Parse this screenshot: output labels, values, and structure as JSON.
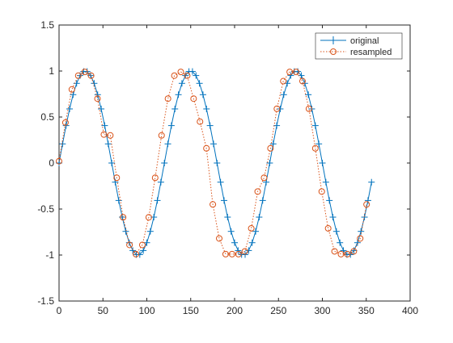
{
  "chart_data": {
    "type": "line",
    "title": "",
    "xlabel": "",
    "ylabel": "",
    "xlim": [
      0,
      400
    ],
    "ylim": [
      -1.5,
      1.5
    ],
    "xticks": [
      0,
      50,
      100,
      150,
      200,
      250,
      300,
      350,
      400
    ],
    "yticks": [
      -1.5,
      -1,
      -0.5,
      0,
      0.5,
      1,
      1.5
    ],
    "grid": false,
    "legend_position": "top-right",
    "series": [
      {
        "name": "original",
        "color": "#0072BD",
        "line_style": "solid",
        "marker": "plus",
        "x": [
          0,
          4,
          8,
          12,
          16,
          20,
          24,
          28,
          32,
          36,
          40,
          44,
          48,
          52,
          56,
          60,
          64,
          68,
          72,
          76,
          80,
          84,
          88,
          92,
          96,
          100,
          104,
          108,
          112,
          116,
          120,
          124,
          128,
          132,
          136,
          140,
          144,
          148,
          152,
          156,
          160,
          164,
          168,
          172,
          176,
          180,
          184,
          188,
          192,
          196,
          200,
          204,
          208,
          212,
          216,
          220,
          224,
          228,
          232,
          236,
          240,
          244,
          248,
          252,
          256,
          260,
          264,
          268,
          272,
          276,
          280,
          284,
          288,
          292,
          296,
          300,
          304,
          308,
          312,
          316,
          320,
          324,
          328,
          332,
          336,
          340,
          344,
          348,
          352,
          356
        ],
        "y": [
          0,
          0.208,
          0.407,
          0.588,
          0.743,
          0.866,
          0.951,
          0.995,
          0.995,
          0.951,
          0.866,
          0.743,
          0.588,
          0.407,
          0.208,
          0,
          -0.208,
          -0.407,
          -0.588,
          -0.743,
          -0.866,
          -0.951,
          -0.995,
          -0.995,
          -0.951,
          -0.866,
          -0.743,
          -0.588,
          -0.407,
          -0.208,
          0,
          0.208,
          0.407,
          0.588,
          0.743,
          0.866,
          0.951,
          0.995,
          0.995,
          0.951,
          0.866,
          0.743,
          0.588,
          0.407,
          0.208,
          0,
          -0.208,
          -0.407,
          -0.588,
          -0.743,
          -0.866,
          -0.951,
          -0.995,
          -0.995,
          -0.951,
          -0.866,
          -0.743,
          -0.588,
          -0.407,
          -0.208,
          0,
          0.208,
          0.407,
          0.588,
          0.743,
          0.866,
          0.951,
          0.995,
          0.995,
          0.951,
          0.866,
          0.743,
          0.588,
          0.407,
          0.208,
          0,
          -0.208,
          -0.407,
          -0.588,
          -0.743,
          -0.866,
          -0.951,
          -0.995,
          -0.995,
          -0.951,
          -0.866,
          -0.743,
          -0.588,
          -0.407,
          -0.208
        ]
      },
      {
        "name": "resampled",
        "color": "#D95319",
        "line_style": "dotted",
        "marker": "circle",
        "x": [
          0,
          7.3,
          14.6,
          21.9,
          29.2,
          36.5,
          43.8,
          51.1,
          58.4,
          65.7,
          73,
          80.3,
          87.6,
          94.9,
          102.2,
          109.5,
          116.8,
          124.1,
          131.4,
          138.7,
          146,
          153.3,
          160.6,
          167.9,
          175.2,
          182.5,
          189.8,
          197.1,
          204.4,
          211.7,
          219,
          226.3,
          233.6,
          240.9,
          248.2,
          255.5,
          262.8,
          270.1,
          277.4,
          284.7,
          292,
          299.3,
          306.6,
          313.9,
          321.2,
          328.5,
          335.8,
          343.1,
          350.4
        ],
        "y": [
          0.02,
          0.44,
          0.8,
          0.95,
          0.99,
          0.95,
          0.7,
          0.31,
          0.3,
          -0.16,
          -0.59,
          -0.89,
          -0.99,
          -0.89,
          -0.59,
          -0.16,
          0.3,
          0.7,
          0.95,
          0.99,
          0.95,
          0.7,
          0.45,
          0.16,
          -0.45,
          -0.82,
          -0.99,
          -0.99,
          -0.99,
          -0.96,
          -0.71,
          -0.31,
          -0.16,
          0.16,
          0.59,
          0.89,
          0.99,
          0.99,
          0.89,
          0.59,
          0.16,
          -0.31,
          -0.71,
          -0.96,
          -0.99,
          -0.99,
          -0.96,
          -0.82,
          -0.45
        ]
      }
    ]
  }
}
